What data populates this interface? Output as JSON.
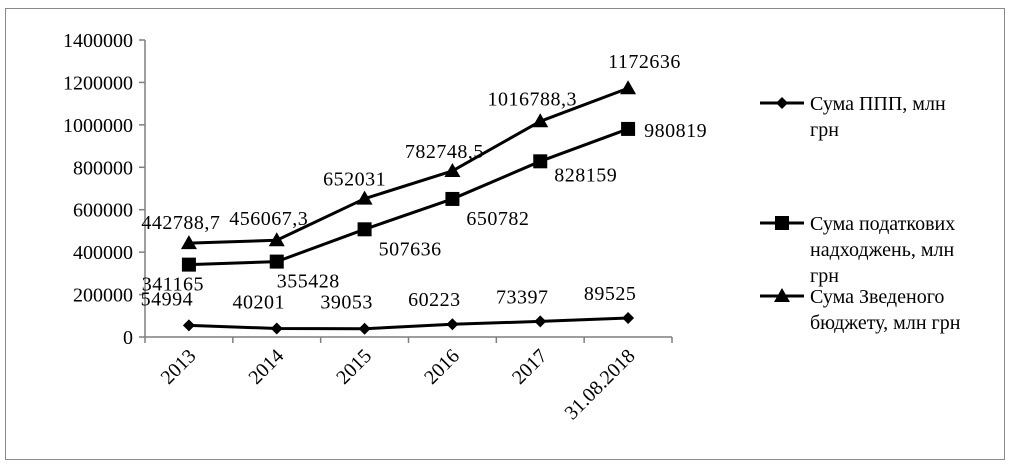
{
  "chart_data": {
    "type": "line",
    "categories": [
      "2013",
      "2014",
      "2015",
      "2016",
      "2017",
      "31.08.2018"
    ],
    "ylim": [
      0,
      1400000
    ],
    "yticks": [
      "0",
      "200000",
      "400000",
      "600000",
      "800000",
      "1000000",
      "1200000",
      "1400000"
    ],
    "grid": false,
    "legend_position": "right",
    "series": [
      {
        "name": "Сума ППП, млн грн",
        "marker": "diamond",
        "values": [
          54994,
          40201,
          39053,
          60223,
          73397,
          89525
        ],
        "labels": [
          "54994",
          "40201",
          "39053",
          "60223",
          "73397",
          "89525"
        ]
      },
      {
        "name": "Сума податкових надходжень, млн грн",
        "marker": "square",
        "values": [
          341165,
          355428,
          507636,
          650782,
          828159,
          980819
        ],
        "labels": [
          "341165",
          "355428",
          "507636",
          "650782",
          "828159",
          "980819"
        ]
      },
      {
        "name": "Сума Зведеного бюджету, млн грн",
        "marker": "triangle",
        "values": [
          442788.7,
          456067.3,
          652031,
          782748.5,
          1016788.3,
          1172636
        ],
        "labels": [
          "442788,7",
          "456067,3",
          "652031",
          "782748,5",
          "1016788,3",
          "1172636"
        ]
      }
    ],
    "legend": [
      [
        "Сума ППП, млн",
        "грн"
      ],
      [
        "Сума податкових",
        "надходжень, млн",
        "грн"
      ],
      [
        "Сума Зведеного",
        "бюджету, млн грн"
      ]
    ],
    "colors": {
      "line": "#000000",
      "axis": "#7f7f7f",
      "frame": "#8a8a8a"
    }
  }
}
